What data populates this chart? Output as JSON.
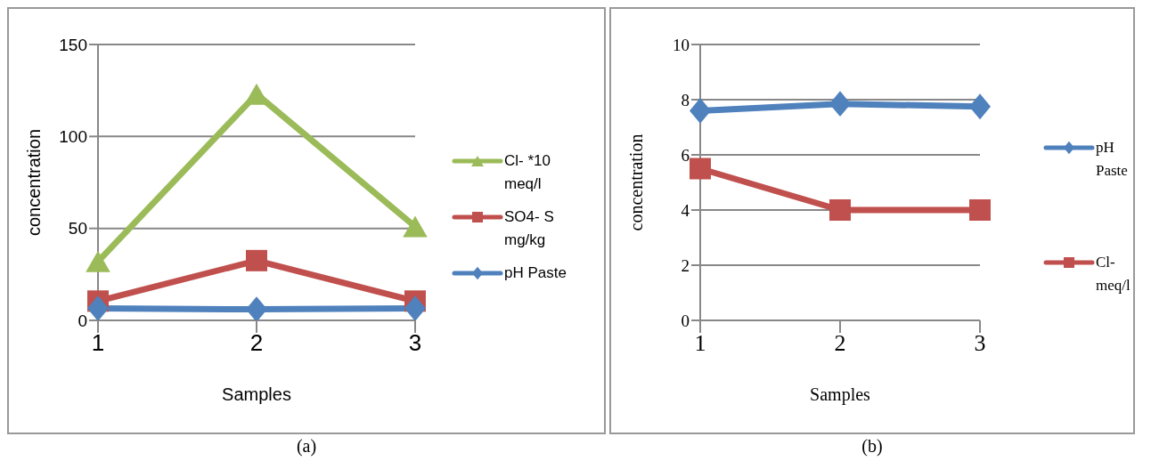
{
  "chart_data": [
    {
      "type": "line",
      "xlabel": "Samples",
      "ylabel": "concentration",
      "categories": [
        "1",
        "2",
        "3"
      ],
      "ylim": [
        0,
        150
      ],
      "yticks": [
        0,
        50,
        100,
        150
      ],
      "grid": "y",
      "legend": "right",
      "annotations": [
        "(a)"
      ],
      "series": [
        {
          "name": "Cl-  *10 meq/l",
          "color": "#9bbb59",
          "marker": "triangle",
          "values": [
            32,
            123,
            51
          ]
        },
        {
          "name": "SO4- S mg/kg",
          "color": "#c0504d",
          "marker": "square",
          "values": [
            10.5,
            32.5,
            10.5
          ]
        },
        {
          "name": "pH Paste",
          "color": "#4f81bd",
          "marker": "diamond",
          "values": [
            6.5,
            6,
            6.5
          ]
        }
      ]
    },
    {
      "type": "line",
      "xlabel": "Samples",
      "ylabel": "concentration",
      "categories": [
        "1",
        "2",
        "3"
      ],
      "ylim": [
        0,
        10
      ],
      "yticks": [
        0,
        2,
        4,
        6,
        8,
        10
      ],
      "grid": "y",
      "legend": "right",
      "annotations": [
        "(b)"
      ],
      "series": [
        {
          "name": "pH Paste",
          "color": "#4f81bd",
          "marker": "diamond",
          "values": [
            7.6,
            7.85,
            7.75
          ]
        },
        {
          "name": "Cl- meq/l",
          "color": "#c0504d",
          "marker": "square",
          "values": [
            5.5,
            4,
            4
          ]
        }
      ]
    }
  ]
}
